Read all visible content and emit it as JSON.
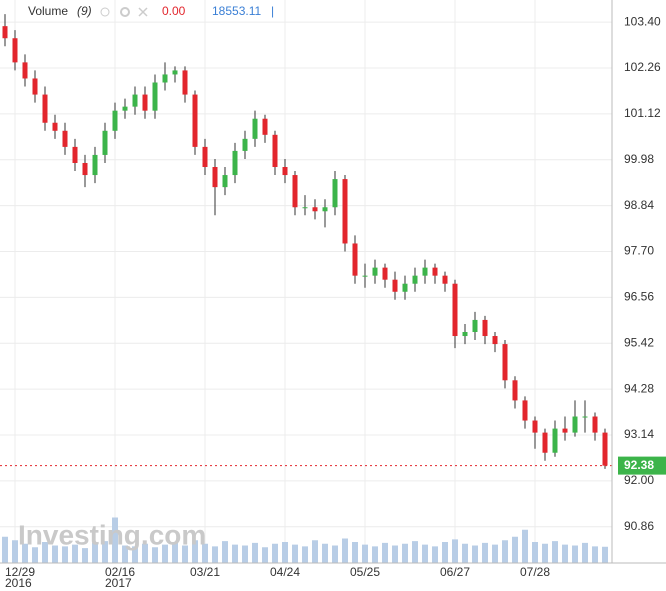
{
  "chart_data": {
    "type": "candlestick",
    "legend": {
      "name": "Volume",
      "period": "(9)",
      "change": "0.00",
      "last": "18553.11",
      "cursor": "|"
    },
    "watermark": "Investing.com",
    "categories": [
      null,
      "12/29",
      null,
      null,
      null,
      null,
      null,
      null,
      null,
      null,
      null,
      "02/16",
      null,
      null,
      null,
      null,
      null,
      null,
      null,
      null,
      "03/21",
      null,
      null,
      null,
      null,
      null,
      null,
      null,
      "04/24",
      null,
      null,
      null,
      null,
      null,
      null,
      null,
      "05/25",
      null,
      null,
      null,
      null,
      null,
      null,
      null,
      null,
      "06/27",
      null,
      null,
      null,
      null,
      null,
      null,
      null,
      "07/28",
      null,
      null,
      null,
      null,
      null,
      null,
      null
    ],
    "category_years": [
      null,
      "2016",
      null,
      null,
      null,
      null,
      null,
      null,
      null,
      null,
      null,
      "2017",
      null,
      null,
      null,
      null,
      null,
      null,
      null,
      null,
      null,
      null,
      null,
      null,
      null,
      null,
      null,
      null,
      null,
      null,
      null,
      null,
      null,
      null,
      null,
      null,
      null,
      null,
      null,
      null,
      null,
      null,
      null,
      null,
      null,
      null,
      null,
      null,
      null,
      null,
      null,
      null,
      null,
      null,
      null,
      null,
      null,
      null,
      null,
      null,
      null
    ],
    "open": [
      103.3,
      103.0,
      102.4,
      102.0,
      101.6,
      100.9,
      100.7,
      100.3,
      99.9,
      99.6,
      100.1,
      100.7,
      101.2,
      101.3,
      101.6,
      101.2,
      101.9,
      102.1,
      102.2,
      101.6,
      100.3,
      99.8,
      99.3,
      99.6,
      100.2,
      100.5,
      101.0,
      100.6,
      99.8,
      99.6,
      98.8,
      98.8,
      98.7,
      98.8,
      99.5,
      97.9,
      97.1,
      97.1,
      97.3,
      97.0,
      96.7,
      96.9,
      97.1,
      97.3,
      97.1,
      96.9,
      95.6,
      95.7,
      96.0,
      95.6,
      95.4,
      94.5,
      94.0,
      93.5,
      93.2,
      92.7,
      93.3,
      93.2,
      93.6,
      93.6,
      93.2
    ],
    "high": [
      103.6,
      103.2,
      102.6,
      102.2,
      101.8,
      101.1,
      100.9,
      100.5,
      100.1,
      100.3,
      100.9,
      101.4,
      101.5,
      101.8,
      101.8,
      102.1,
      102.4,
      102.3,
      102.3,
      101.7,
      100.5,
      100.0,
      99.8,
      100.4,
      100.7,
      101.2,
      101.1,
      100.7,
      100.0,
      99.7,
      99.1,
      99.0,
      99.0,
      99.7,
      99.6,
      98.1,
      97.4,
      97.5,
      97.4,
      97.2,
      97.1,
      97.3,
      97.5,
      97.4,
      97.2,
      97.0,
      95.9,
      96.2,
      96.1,
      95.7,
      95.5,
      94.6,
      94.1,
      93.6,
      93.3,
      93.5,
      93.6,
      94.0,
      94.0,
      93.7,
      93.3
    ],
    "low": [
      102.8,
      102.2,
      101.8,
      101.4,
      100.7,
      100.5,
      100.1,
      99.7,
      99.3,
      99.4,
      99.9,
      100.5,
      101.0,
      101.1,
      101.0,
      101.0,
      101.7,
      101.9,
      101.4,
      100.1,
      99.6,
      98.6,
      99.1,
      99.4,
      100.0,
      100.3,
      100.4,
      99.6,
      99.4,
      98.6,
      98.6,
      98.5,
      98.3,
      98.6,
      97.7,
      96.9,
      96.8,
      96.9,
      96.8,
      96.5,
      96.5,
      96.7,
      96.9,
      96.9,
      96.7,
      95.3,
      95.4,
      95.5,
      95.4,
      95.2,
      94.3,
      93.8,
      93.3,
      92.8,
      92.5,
      92.6,
      93.0,
      93.1,
      93.2,
      93.0,
      92.3
    ],
    "close": [
      103.0,
      102.4,
      102.0,
      101.6,
      100.9,
      100.7,
      100.3,
      99.9,
      99.6,
      100.1,
      100.7,
      101.2,
      101.3,
      101.6,
      101.2,
      101.9,
      102.1,
      102.2,
      101.6,
      100.3,
      99.8,
      99.3,
      99.6,
      100.2,
      100.5,
      101.0,
      100.6,
      99.8,
      99.6,
      98.8,
      98.8,
      98.7,
      98.8,
      99.5,
      97.9,
      97.1,
      97.1,
      97.3,
      97.0,
      96.7,
      96.9,
      97.1,
      97.3,
      97.1,
      96.9,
      95.6,
      95.7,
      96.0,
      95.6,
      95.4,
      94.5,
      94.0,
      93.5,
      93.2,
      92.7,
      93.3,
      93.2,
      93.6,
      93.6,
      93.2,
      92.38
    ],
    "volume": [
      30000,
      26000,
      22000,
      18000,
      24000,
      20000,
      19000,
      21000,
      17000,
      23000,
      25000,
      52000,
      20000,
      19000,
      22000,
      18000,
      21000,
      24000,
      20000,
      26000,
      22000,
      19000,
      25000,
      21000,
      20000,
      23000,
      18000,
      22000,
      24000,
      21000,
      19000,
      26000,
      22000,
      20000,
      28000,
      24000,
      21000,
      19000,
      23000,
      20000,
      22000,
      25000,
      21000,
      19000,
      24000,
      27000,
      22000,
      20000,
      23000,
      21000,
      26000,
      30000,
      38000,
      24000,
      22000,
      25000,
      21000,
      20000,
      23000,
      19000,
      18553.11
    ],
    "vlim": [
      0,
      80000
    ],
    "up_color": "#3cb44a",
    "down_color": "#e2262d",
    "volume_color": "#b8cde6",
    "ylim": [
      89.96,
      103.95
    ],
    "yticks": [
      {
        "value": 103.4,
        "label": "103.40"
      },
      {
        "value": 102.26,
        "label": "102.26"
      },
      {
        "value": 101.12,
        "label": "101.12"
      },
      {
        "value": 99.98,
        "label": "99.98"
      },
      {
        "value": 98.84,
        "label": "98.84"
      },
      {
        "value": 97.7,
        "label": "97.70"
      },
      {
        "value": 96.56,
        "label": "96.56"
      },
      {
        "value": 95.42,
        "label": "95.42"
      },
      {
        "value": 94.28,
        "label": "94.28"
      },
      {
        "value": 93.14,
        "label": "93.14"
      },
      {
        "value": 92.0,
        "label": "92.00"
      },
      {
        "value": 90.86,
        "label": "90.86"
      }
    ],
    "last_price": {
      "value": 92.38,
      "label": "92.38",
      "color": "#3cb44a",
      "line_color": "#e2262d"
    },
    "grid": true
  }
}
